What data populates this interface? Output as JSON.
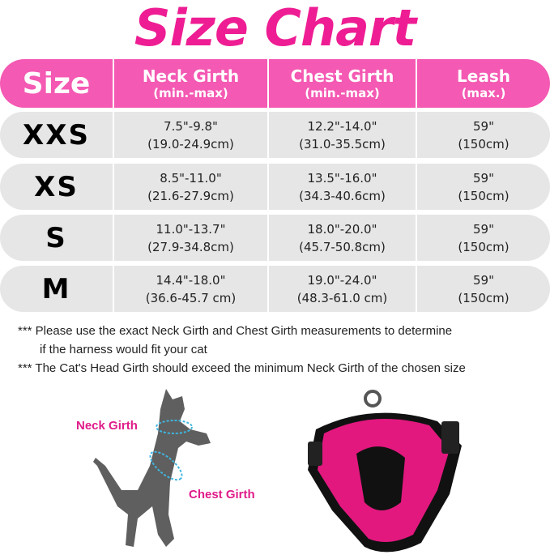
{
  "title": "Size Chart",
  "header": {
    "size": "Size",
    "neck": "Neck Girth",
    "neck_sub": "(min.-max)",
    "chest": "Chest Girth",
    "chest_sub": "(min.-max)",
    "leash": "Leash",
    "leash_sub": "(max.)"
  },
  "rows": [
    {
      "size": "XXS",
      "neck_in": "7.5\"-9.8\"",
      "neck_cm": "(19.0-24.9cm)",
      "chest_in": "12.2\"-14.0\"",
      "chest_cm": "(31.0-35.5cm)",
      "leash_in": "59\"",
      "leash_cm": "(150cm)"
    },
    {
      "size": "XS",
      "neck_in": "8.5\"-11.0\"",
      "neck_cm": "(21.6-27.9cm)",
      "chest_in": "13.5\"-16.0\"",
      "chest_cm": "(34.3-40.6cm)",
      "leash_in": "59\"",
      "leash_cm": "(150cm)"
    },
    {
      "size": "S",
      "neck_in": "11.0\"-13.7\"",
      "neck_cm": "(27.9-34.8cm)",
      "chest_in": "18.0\"-20.0\"",
      "chest_cm": "(45.7-50.8cm)",
      "leash_in": "59\"",
      "leash_cm": "(150cm)"
    },
    {
      "size": "M",
      "neck_in": "14.4\"-18.0\"",
      "neck_cm": "(36.6-45.7 cm)",
      "chest_in": "19.0\"-24.0\"",
      "chest_cm": "(48.3-61.0 cm)",
      "leash_in": "59\"",
      "leash_cm": "(150cm)"
    }
  ],
  "notes": [
    "*** Please use the exact Neck Girth and Chest Girth measurements to determine",
    "if the harness would fit your cat",
    "*** The Cat's Head Girth should exceed the minimum Neck Girth of the chosen size"
  ],
  "labels": {
    "neck": "Neck Girth",
    "chest": "Chest Girth"
  },
  "colors": {
    "accent": "#ee1d93",
    "header": "#f459b3",
    "row": "#e6e6e6"
  }
}
